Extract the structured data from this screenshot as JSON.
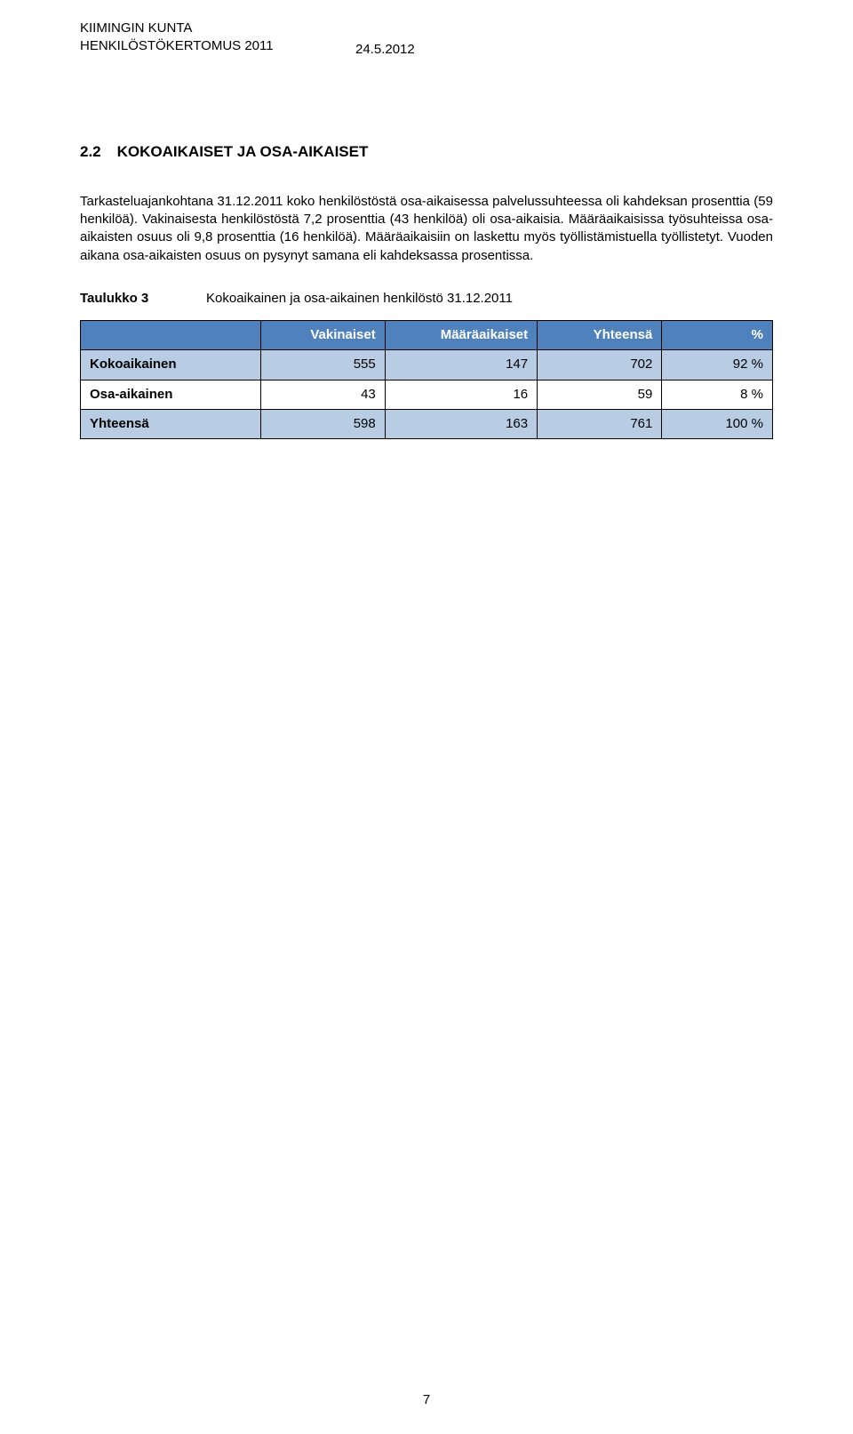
{
  "header": {
    "org": "KIIMINGIN KUNTA",
    "doc": "HENKILÖSTÖKERTOMUS 2011",
    "date": "24.5.2012"
  },
  "section": {
    "number": "2.2",
    "title": "KOKOAIKAISET JA OSA-AIKAISET"
  },
  "paragraphs": {
    "p1": "Tarkasteluajankohtana 31.12.2011 koko henkilöstöstä osa-aikaisessa palvelussuhteessa oli kahdeksan prosenttia (59 henkilöä). Vakinaisesta henkilöstöstä 7,2 prosenttia (43 henkilöä) oli osa-aikaisia. Määräaikaisissa työsuhteissa osa-aikaisten osuus oli 9,8 prosenttia (16 henkilöä). Määräaikaisiin on laskettu myös työllistämistuella työllistetyt. Vuoden aikana osa-aikaisten osuus on pysynyt samana eli kahdeksassa prosentissa."
  },
  "table3": {
    "label": "Taulukko 3",
    "caption": "Kokoaikainen ja osa-aikainen henkilöstö 31.12.2011",
    "columns": [
      "",
      "Vakinaiset",
      "Määräaikaiset",
      "Yhteensä",
      "%"
    ],
    "rows": [
      {
        "label": "Kokoaikainen",
        "v": "555",
        "m": "147",
        "y": "702",
        "p": "92 %"
      },
      {
        "label": "Osa-aikainen",
        "v": "43",
        "m": "16",
        "y": "59",
        "p": "8 %"
      },
      {
        "label": "Yhteensä",
        "v": "598",
        "m": "163",
        "y": "761",
        "p": "100 %"
      }
    ],
    "colors": {
      "header_bg": "#4f81bd",
      "row_alt_bg": "#b8cce4",
      "border": "#000000",
      "header_text": "#ffffff"
    },
    "col_widths_pct": [
      26,
      18,
      22,
      18,
      16
    ]
  },
  "page_number": "7"
}
